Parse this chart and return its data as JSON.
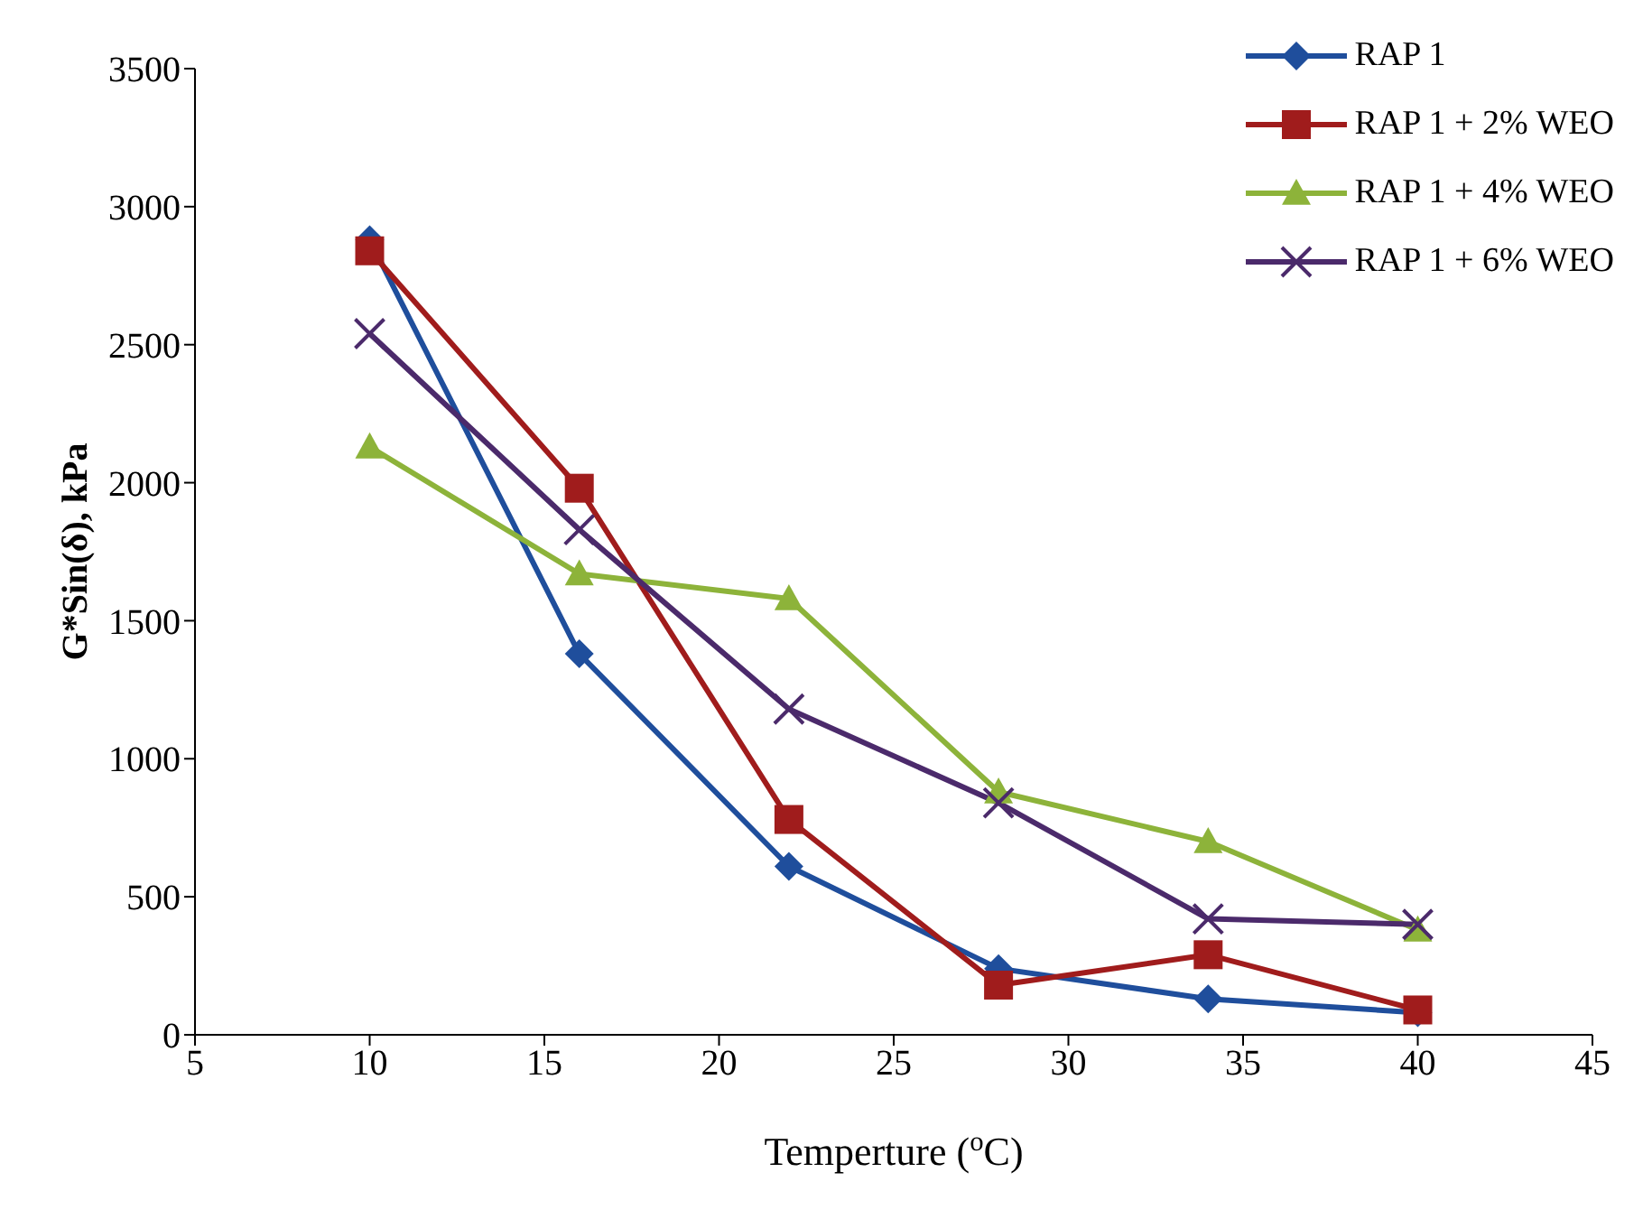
{
  "chart_data": {
    "type": "line",
    "xlabel": "Temperture ($^{o}$C)",
    "ylabel": "G*Sin(δ), kPa",
    "x": [
      10,
      16,
      22,
      28,
      34,
      40
    ],
    "series": [
      {
        "name": "RAP 1",
        "color": "#1f4e9c",
        "marker": "diamond",
        "values": [
          2880,
          1380,
          610,
          240,
          130,
          80
        ]
      },
      {
        "name": "RAP 1 + 2% WEO",
        "color": "#a01c1c",
        "marker": "square",
        "values": [
          2840,
          1980,
          780,
          180,
          290,
          90
        ]
      },
      {
        "name": "RAP 1 + 4% WEO",
        "color": "#8db33a",
        "marker": "triangle",
        "values": [
          2130,
          1670,
          1580,
          880,
          700,
          380
        ]
      },
      {
        "name": "RAP 1 + 6% WEO",
        "color": "#4b2a6b",
        "marker": "cross",
        "values": [
          2540,
          1830,
          1180,
          840,
          420,
          400
        ]
      }
    ],
    "xlim": [
      5,
      45
    ],
    "xticks": [
      5,
      10,
      15,
      20,
      25,
      30,
      35,
      40,
      45
    ],
    "ylim": [
      0,
      3500
    ],
    "yticks": [
      0,
      500,
      1000,
      1500,
      2000,
      2500,
      3000,
      3500
    ],
    "grid": false,
    "legend": "top right",
    "line_style": "solid"
  }
}
